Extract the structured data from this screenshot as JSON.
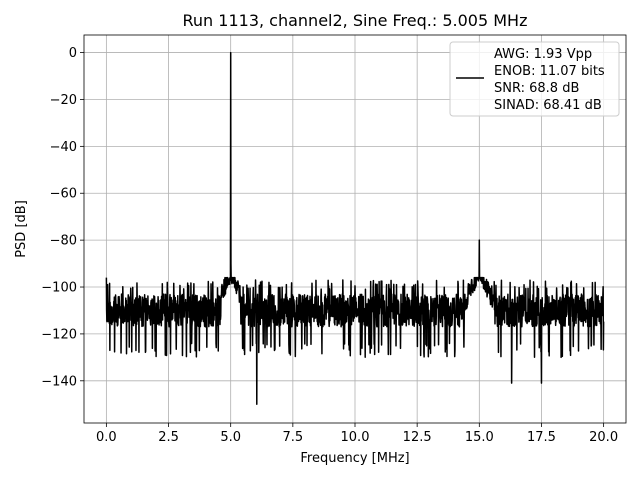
{
  "chart_data": {
    "type": "line",
    "title": "Run 1113, channel2, Sine Freq.: 5.005 MHz",
    "xlabel": "Frequency [MHz]",
    "ylabel": "PSD [dB]",
    "xlim": [
      -0.9,
      20.9
    ],
    "ylim": [
      -158,
      7.5
    ],
    "xticks": [
      0.0,
      2.5,
      5.0,
      7.5,
      10.0,
      12.5,
      15.0,
      17.5,
      20.0
    ],
    "xtick_labels": [
      "0.0",
      "2.5",
      "5.0",
      "7.5",
      "10.0",
      "12.5",
      "15.0",
      "17.5",
      "20.0"
    ],
    "yticks": [
      0,
      -20,
      -40,
      -60,
      -80,
      -100,
      -120,
      -140
    ],
    "ytick_labels": [
      "0",
      "−20",
      "−40",
      "−60",
      "−80",
      "−100",
      "−120",
      "−140"
    ],
    "grid": true,
    "legend_position": "top-right",
    "legend_lines": [
      "AWG: 1.93 Vpp",
      "ENOB: 11.07 bits",
      "SNR: 68.8 dB",
      "SINAD: 68.41 dB"
    ],
    "series_color": "#000000",
    "noise_floor_db": -110,
    "noise_spread_db": [
      -130,
      -97
    ],
    "peaks": [
      {
        "freq_mhz": 0.0,
        "psd_db": -96
      },
      {
        "freq_mhz": 5.005,
        "psd_db": 0
      },
      {
        "freq_mhz": 6.05,
        "psd_db": -150
      },
      {
        "freq_mhz": 15.0,
        "psd_db": -80
      },
      {
        "freq_mhz": 16.3,
        "psd_db": -141
      },
      {
        "freq_mhz": 17.5,
        "psd_db": -141
      }
    ]
  }
}
